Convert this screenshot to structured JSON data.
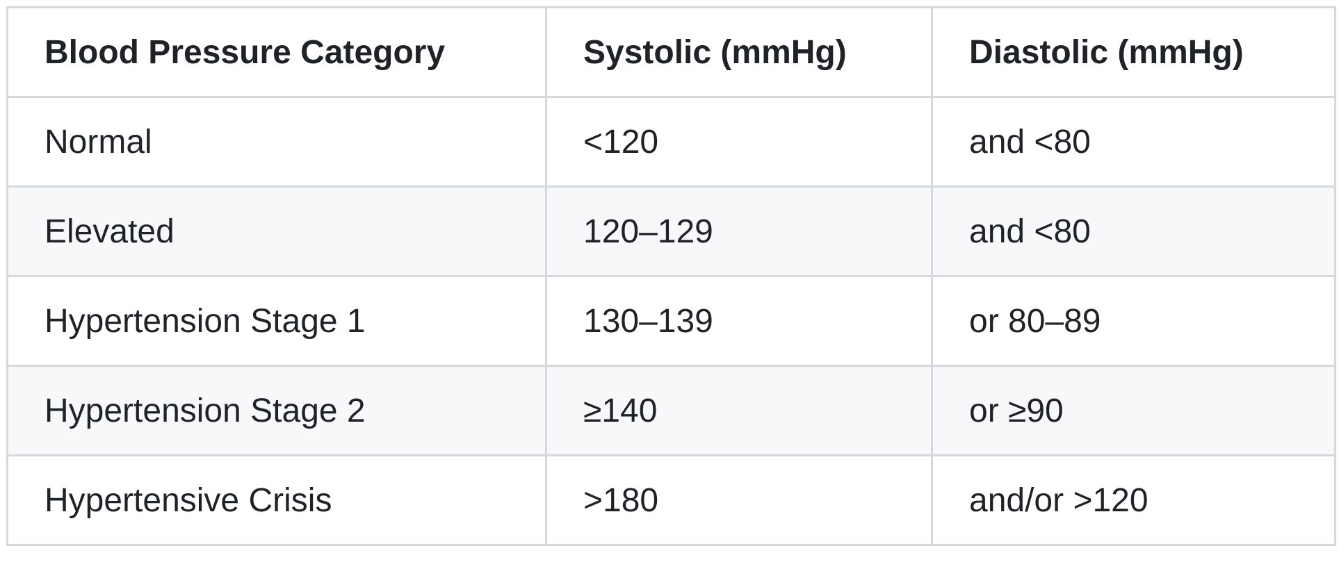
{
  "table": {
    "header": [
      "Blood Pressure Category",
      "Systolic (mmHg)",
      "Diastolic (mmHg)"
    ],
    "rows": [
      [
        "Normal",
        "<120",
        "and <80"
      ],
      [
        "Elevated",
        "120–129",
        "and <80"
      ],
      [
        "Hypertension Stage 1",
        "130–139",
        "or 80–89"
      ],
      [
        "Hypertension Stage 2",
        "≥140",
        "or ≥90"
      ],
      [
        "Hypertensive Crisis",
        ">180",
        "and/or >120"
      ]
    ]
  }
}
